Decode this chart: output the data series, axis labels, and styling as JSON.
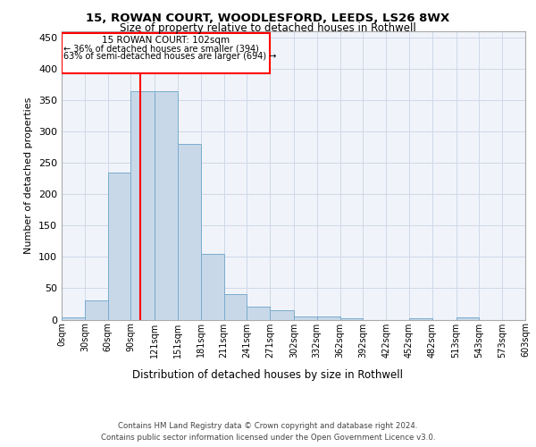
{
  "title_line1": "15, ROWAN COURT, WOODLESFORD, LEEDS, LS26 8WX",
  "title_line2": "Size of property relative to detached houses in Rothwell",
  "xlabel": "Distribution of detached houses by size in Rothwell",
  "ylabel": "Number of detached properties",
  "bar_color": "#c8d8e8",
  "bar_edge_color": "#7aabcf",
  "bins": [
    0,
    30,
    60,
    90,
    121,
    151,
    181,
    211,
    241,
    271,
    302,
    332,
    362,
    392,
    422,
    452,
    482,
    513,
    543,
    573,
    603
  ],
  "bin_labels": [
    "0sqm",
    "30sqm",
    "60sqm",
    "90sqm",
    "121sqm",
    "151sqm",
    "181sqm",
    "211sqm",
    "241sqm",
    "271sqm",
    "302sqm",
    "332sqm",
    "362sqm",
    "392sqm",
    "422sqm",
    "452sqm",
    "482sqm",
    "513sqm",
    "543sqm",
    "573sqm",
    "603sqm"
  ],
  "heights": [
    3,
    30,
    235,
    365,
    365,
    280,
    105,
    40,
    20,
    15,
    5,
    5,
    2,
    0,
    0,
    2,
    0,
    3,
    0,
    0,
    0
  ],
  "property_size": 102,
  "red_line_x": 102,
  "annotation_title": "15 ROWAN COURT: 102sqm",
  "annotation_line2": "← 36% of detached houses are smaller (394)",
  "annotation_line3": "63% of semi-detached houses are larger (694) →",
  "ylim": [
    0,
    460
  ],
  "yticks": [
    0,
    50,
    100,
    150,
    200,
    250,
    300,
    350,
    400,
    450
  ],
  "grid_color": "#d0d8e8",
  "background_color": "#f0f4fa",
  "footer_line1": "Contains HM Land Registry data © Crown copyright and database right 2024.",
  "footer_line2": "Contains public sector information licensed under the Open Government Licence v3.0."
}
